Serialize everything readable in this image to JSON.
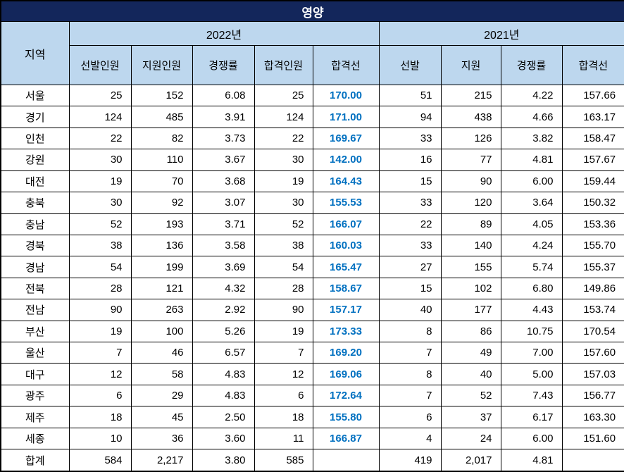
{
  "title": "영양",
  "colors": {
    "title_bg": "#13265B",
    "title_text": "#FFFFFF",
    "header_bg": "#BDD7EE",
    "cutoff_2022_text": "#0070C0",
    "border": "#000000"
  },
  "header": {
    "region": "지역",
    "group_2022": "2022년",
    "group_2021": "2021년",
    "cols_2022": [
      "선발인원",
      "지원인원",
      "경쟁률",
      "합격인원",
      "합격선"
    ],
    "cols_2021": [
      "선발",
      "지원",
      "경쟁률",
      "합격선"
    ]
  },
  "rows": [
    {
      "region": "서울",
      "y2022": [
        "25",
        "152",
        "6.08",
        "25",
        "170.00"
      ],
      "y2021": [
        "51",
        "215",
        "4.22",
        "157.66"
      ]
    },
    {
      "region": "경기",
      "y2022": [
        "124",
        "485",
        "3.91",
        "124",
        "171.00"
      ],
      "y2021": [
        "94",
        "438",
        "4.66",
        "163.17"
      ]
    },
    {
      "region": "인천",
      "y2022": [
        "22",
        "82",
        "3.73",
        "22",
        "169.67"
      ],
      "y2021": [
        "33",
        "126",
        "3.82",
        "158.47"
      ]
    },
    {
      "region": "강원",
      "y2022": [
        "30",
        "110",
        "3.67",
        "30",
        "142.00"
      ],
      "y2021": [
        "16",
        "77",
        "4.81",
        "157.67"
      ]
    },
    {
      "region": "대전",
      "y2022": [
        "19",
        "70",
        "3.68",
        "19",
        "164.43"
      ],
      "y2021": [
        "15",
        "90",
        "6.00",
        "159.44"
      ]
    },
    {
      "region": "충북",
      "y2022": [
        "30",
        "92",
        "3.07",
        "30",
        "155.53"
      ],
      "y2021": [
        "33",
        "120",
        "3.64",
        "150.32"
      ]
    },
    {
      "region": "충남",
      "y2022": [
        "52",
        "193",
        "3.71",
        "52",
        "166.07"
      ],
      "y2021": [
        "22",
        "89",
        "4.05",
        "153.36"
      ]
    },
    {
      "region": "경북",
      "y2022": [
        "38",
        "136",
        "3.58",
        "38",
        "160.03"
      ],
      "y2021": [
        "33",
        "140",
        "4.24",
        "155.70"
      ]
    },
    {
      "region": "경남",
      "y2022": [
        "54",
        "199",
        "3.69",
        "54",
        "165.47"
      ],
      "y2021": [
        "27",
        "155",
        "5.74",
        "155.37"
      ]
    },
    {
      "region": "전북",
      "y2022": [
        "28",
        "121",
        "4.32",
        "28",
        "158.67"
      ],
      "y2021": [
        "15",
        "102",
        "6.80",
        "149.86"
      ]
    },
    {
      "region": "전남",
      "y2022": [
        "90",
        "263",
        "2.92",
        "90",
        "157.17"
      ],
      "y2021": [
        "40",
        "177",
        "4.43",
        "153.74"
      ]
    },
    {
      "region": "부산",
      "y2022": [
        "19",
        "100",
        "5.26",
        "19",
        "173.33"
      ],
      "y2021": [
        "8",
        "86",
        "10.75",
        "170.54"
      ]
    },
    {
      "region": "울산",
      "y2022": [
        "7",
        "46",
        "6.57",
        "7",
        "169.20"
      ],
      "y2021": [
        "7",
        "49",
        "7.00",
        "157.60"
      ]
    },
    {
      "region": "대구",
      "y2022": [
        "12",
        "58",
        "4.83",
        "12",
        "169.06"
      ],
      "y2021": [
        "8",
        "40",
        "5.00",
        "157.03"
      ]
    },
    {
      "region": "광주",
      "y2022": [
        "6",
        "29",
        "4.83",
        "6",
        "172.64"
      ],
      "y2021": [
        "7",
        "52",
        "7.43",
        "156.77"
      ]
    },
    {
      "region": "제주",
      "y2022": [
        "18",
        "45",
        "2.50",
        "18",
        "155.80"
      ],
      "y2021": [
        "6",
        "37",
        "6.17",
        "163.30"
      ]
    },
    {
      "region": "세종",
      "y2022": [
        "10",
        "36",
        "3.60",
        "11",
        "166.87"
      ],
      "y2021": [
        "4",
        "24",
        "6.00",
        "151.60"
      ]
    },
    {
      "region": "합계",
      "y2022": [
        "584",
        "2,217",
        "3.80",
        "585",
        ""
      ],
      "y2021": [
        "419",
        "2,017",
        "4.81",
        ""
      ]
    }
  ]
}
